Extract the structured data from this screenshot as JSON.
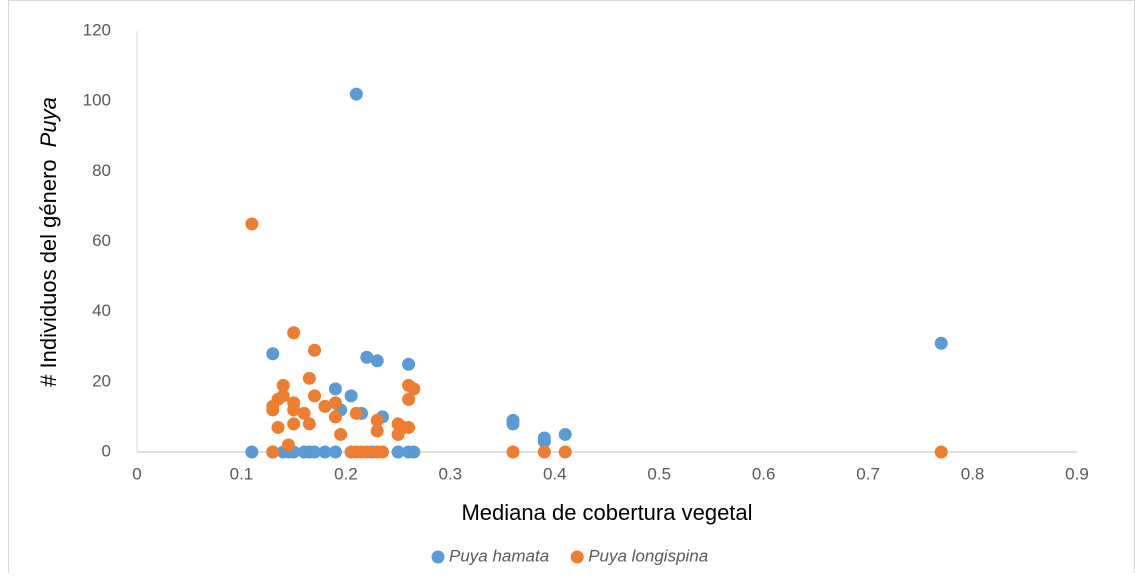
{
  "chart_data": {
    "type": "scatter",
    "xlabel": "Mediana de cobertura vegetal",
    "ylabel": [
      "# Individuos del género",
      "Puya"
    ],
    "xlim": [
      0,
      0.9
    ],
    "xticks": [
      0,
      0.1,
      0.2,
      0.3,
      0.4,
      0.5,
      0.6,
      0.7,
      0.8,
      0.9
    ],
    "ylim": [
      0,
      120
    ],
    "yticks": [
      0,
      20,
      40,
      60,
      80,
      100,
      120
    ],
    "grid": false,
    "legend": "bottom",
    "series": [
      {
        "name": "Puya hamata",
        "color": "#5b9bd5",
        "x": [
          0.11,
          0.13,
          0.13,
          0.14,
          0.145,
          0.15,
          0.16,
          0.165,
          0.17,
          0.18,
          0.19,
          0.19,
          0.195,
          0.205,
          0.21,
          0.215,
          0.22,
          0.225,
          0.23,
          0.235,
          0.25,
          0.26,
          0.265,
          0.26,
          0.36,
          0.36,
          0.39,
          0.39,
          0.41,
          0.77
        ],
        "values": [
          0,
          28,
          0,
          0,
          0,
          0,
          0,
          0,
          0,
          0,
          18,
          0,
          12,
          16,
          102,
          11,
          27,
          0,
          26,
          10,
          0,
          25,
          0,
          0,
          9,
          8,
          4,
          3,
          5,
          31
        ]
      },
      {
        "name": "Puya longispina",
        "color": "#ed7d31",
        "x": [
          0.11,
          0.13,
          0.13,
          0.13,
          0.135,
          0.135,
          0.14,
          0.14,
          0.145,
          0.15,
          0.15,
          0.15,
          0.15,
          0.16,
          0.165,
          0.165,
          0.17,
          0.17,
          0.18,
          0.19,
          0.19,
          0.195,
          0.205,
          0.21,
          0.21,
          0.215,
          0.22,
          0.23,
          0.23,
          0.23,
          0.235,
          0.25,
          0.25,
          0.255,
          0.26,
          0.26,
          0.26,
          0.265,
          0.36,
          0.39,
          0.41,
          0.77
        ],
        "values": [
          65,
          13,
          12,
          0,
          15,
          7,
          19,
          16,
          2,
          34,
          14,
          12,
          8,
          11,
          21,
          8,
          29,
          16,
          13,
          14,
          10,
          5,
          0,
          11,
          0,
          0,
          0,
          9,
          6,
          0,
          0,
          8,
          5,
          7,
          19,
          15,
          7,
          18,
          0,
          0,
          0,
          0
        ]
      }
    ]
  }
}
